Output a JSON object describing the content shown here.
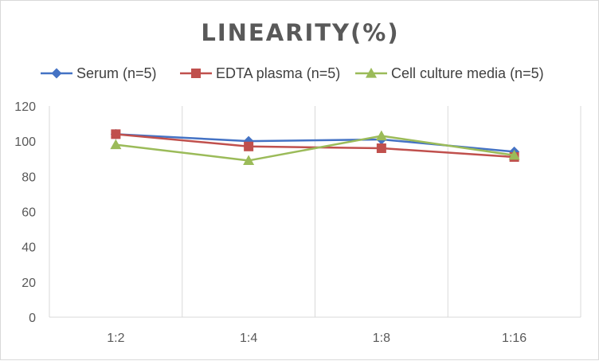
{
  "chart_data": {
    "type": "line",
    "title": "LINEARITY(%)",
    "xlabel": "",
    "ylabel": "",
    "categories": [
      "1:2",
      "1:4",
      "1:8",
      "1:16"
    ],
    "ylim": [
      0,
      120
    ],
    "yticks": [
      0,
      20,
      40,
      60,
      80,
      100,
      120
    ],
    "grid": "vertical",
    "legend_position": "top",
    "series": [
      {
        "name": "Serum (n=5)",
        "values": [
          104,
          100,
          101,
          94
        ],
        "color": "#4472c4",
        "marker": "diamond"
      },
      {
        "name": "EDTA plasma (n=5)",
        "values": [
          104,
          97,
          96,
          91
        ],
        "color": "#c0504d",
        "marker": "square"
      },
      {
        "name": "Cell culture media (n=5)",
        "values": [
          98,
          89,
          103,
          92
        ],
        "color": "#9bbb59",
        "marker": "triangle"
      }
    ]
  }
}
